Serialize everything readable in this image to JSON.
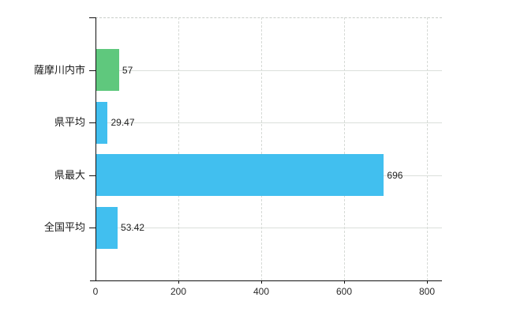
{
  "chart": {
    "background": "#ffffff",
    "axis_color": "#111111",
    "grid_color": "#dbdfdb",
    "text_color": "#1f1f1f"
  },
  "chart_data": {
    "type": "bar",
    "orientation": "horizontal",
    "title": "",
    "xlabel": "",
    "ylabel": "",
    "categories": [
      "薩摩川内市",
      "県平均",
      "県最大",
      "全国平均"
    ],
    "values": [
      57,
      29.47,
      696,
      53.42
    ],
    "value_labels": [
      "57",
      "29.47",
      "696",
      "53.42"
    ],
    "bar_colors": [
      "#5fc87d",
      "#41bfef",
      "#41bfef",
      "#41bfef"
    ],
    "x_ticks": [
      0,
      200,
      400,
      600,
      800
    ],
    "x_tick_labels": [
      "0",
      "200",
      "400",
      "600",
      "800"
    ],
    "xlim": [
      0,
      836
    ],
    "grid": true,
    "legend": false
  }
}
